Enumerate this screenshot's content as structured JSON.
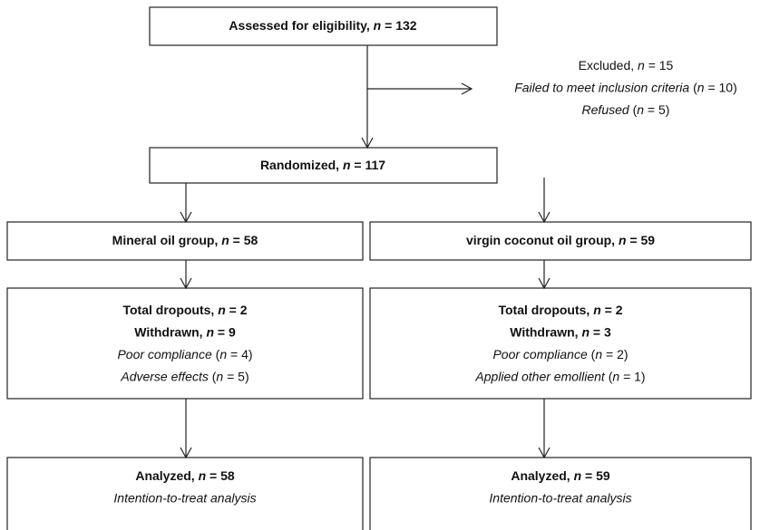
{
  "nodes": [
    {
      "lines": [
        [
          {
            "text": "Assessed for eligibility, ",
            "style": "bold"
          },
          {
            "text": "n",
            "style": "bold-italic"
          },
          {
            "text": " = 132",
            "style": "bold"
          }
        ]
      ]
    },
    {
      "lines": [
        [
          {
            "text": "Excluded, ",
            "style": "normal"
          },
          {
            "text": "n",
            "style": "italic"
          },
          {
            "text": " = 15",
            "style": "normal"
          }
        ],
        [
          {
            "text": "Failed to meet inclusion criteria",
            "style": "italic"
          },
          {
            "text": " (",
            "style": "normal"
          },
          {
            "text": "n",
            "style": "italic"
          },
          {
            "text": " = 10)",
            "style": "normal"
          }
        ],
        [
          {
            "text": "Refused",
            "style": "italic"
          },
          {
            "text": " (",
            "style": "normal"
          },
          {
            "text": "n",
            "style": "italic"
          },
          {
            "text": " = 5)",
            "style": "normal"
          }
        ]
      ]
    },
    {
      "lines": [
        [
          {
            "text": "Randomized, ",
            "style": "bold"
          },
          {
            "text": "n",
            "style": "bold-italic"
          },
          {
            "text": " = 117",
            "style": "bold"
          }
        ]
      ]
    },
    {
      "lines": [
        [
          {
            "text": "Mineral oil group, ",
            "style": "bold"
          },
          {
            "text": "n",
            "style": "bold-italic"
          },
          {
            "text": " = 58",
            "style": "bold"
          }
        ]
      ]
    },
    {
      "lines": [
        [
          {
            "text": "virgin coconut oil group, ",
            "style": "bold"
          },
          {
            "text": "n",
            "style": "bold-italic"
          },
          {
            "text": " = 59",
            "style": "bold"
          }
        ]
      ]
    },
    {
      "lines": [
        [
          {
            "text": "Total dropouts, ",
            "style": "bold"
          },
          {
            "text": "n",
            "style": "bold-italic"
          },
          {
            "text": " = 2",
            "style": "bold"
          }
        ],
        [
          {
            "text": "Withdrawn, ",
            "style": "bold"
          },
          {
            "text": "n",
            "style": "bold-italic"
          },
          {
            "text": " = 9",
            "style": "bold"
          }
        ],
        [
          {
            "text": "Poor compliance",
            "style": "italic"
          },
          {
            "text": " (",
            "style": "normal"
          },
          {
            "text": "n",
            "style": "italic"
          },
          {
            "text": " = 4)",
            "style": "normal"
          }
        ],
        [
          {
            "text": "Adverse effects",
            "style": "italic"
          },
          {
            "text": " (",
            "style": "normal"
          },
          {
            "text": "n",
            "style": "italic"
          },
          {
            "text": " = 5)",
            "style": "normal"
          }
        ]
      ]
    },
    {
      "lines": [
        [
          {
            "text": "Total dropouts, ",
            "style": "bold"
          },
          {
            "text": "n",
            "style": "bold-italic"
          },
          {
            "text": " = 2",
            "style": "bold"
          }
        ],
        [
          {
            "text": "Withdrawn, ",
            "style": "bold"
          },
          {
            "text": "n",
            "style": "bold-italic"
          },
          {
            "text": " = 3",
            "style": "bold"
          }
        ],
        [
          {
            "text": "Poor compliance",
            "style": "italic"
          },
          {
            "text": " (",
            "style": "normal"
          },
          {
            "text": "n",
            "style": "italic"
          },
          {
            "text": " = 2)",
            "style": "normal"
          }
        ],
        [
          {
            "text": "Applied other emollient",
            "style": "italic"
          },
          {
            "text": " (",
            "style": "normal"
          },
          {
            "text": "n",
            "style": "italic"
          },
          {
            "text": " = 1)",
            "style": "normal"
          }
        ]
      ]
    },
    {
      "lines": [
        [
          {
            "text": "Analyzed, ",
            "style": "bold"
          },
          {
            "text": "n",
            "style": "bold-italic"
          },
          {
            "text": " = 58",
            "style": "bold"
          }
        ],
        [
          {
            "text": "Intention-to-treat analysis",
            "style": "italic"
          }
        ]
      ]
    },
    {
      "lines": [
        [
          {
            "text": "Analyzed, ",
            "style": "bold"
          },
          {
            "text": "n",
            "style": "bold-italic"
          },
          {
            "text": " = 59",
            "style": "bold"
          }
        ],
        [
          {
            "text": "Intention-to-treat analysis",
            "style": "italic"
          }
        ]
      ]
    }
  ]
}
